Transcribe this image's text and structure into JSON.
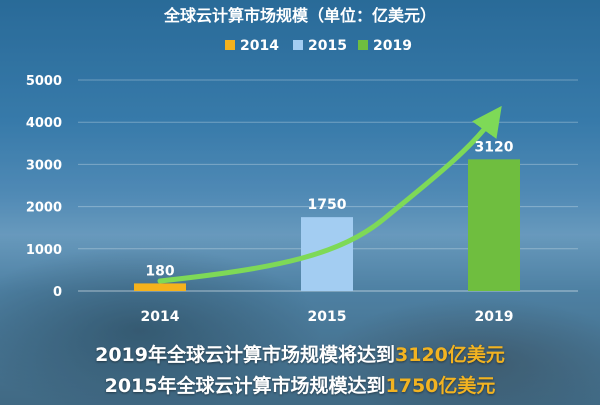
{
  "chart_data": {
    "type": "bar",
    "title": "全球云计算市场规模（单位：亿美元）",
    "categories": [
      "2014",
      "2015",
      "2019"
    ],
    "series": [
      {
        "name": "2014",
        "values": [
          180,
          null,
          null
        ],
        "color": "#f5b21c"
      },
      {
        "name": "2015",
        "values": [
          null,
          1750,
          null
        ],
        "color": "#a3cdf2"
      },
      {
        "name": "2019",
        "values": [
          null,
          null,
          3120
        ],
        "color": "#6fbe3f"
      }
    ],
    "data_labels": [
      "180",
      "1750",
      "3120"
    ],
    "yticks": [
      "0",
      "1000",
      "2000",
      "3000",
      "4000",
      "5000"
    ],
    "ylim": [
      0,
      5000
    ],
    "grid": true,
    "legend_position": "top-center",
    "trend_curve": true,
    "trend_color": "#7ed957"
  },
  "captions": [
    {
      "prefix": "2019年全球云计算市场规模将达到",
      "highlight": "3120亿美元"
    },
    {
      "prefix": "2015年全球云计算市场规模达到",
      "highlight": "1750亿美元"
    }
  ],
  "colors": {
    "highlight": "#f2b321",
    "text": "#ffffff"
  }
}
